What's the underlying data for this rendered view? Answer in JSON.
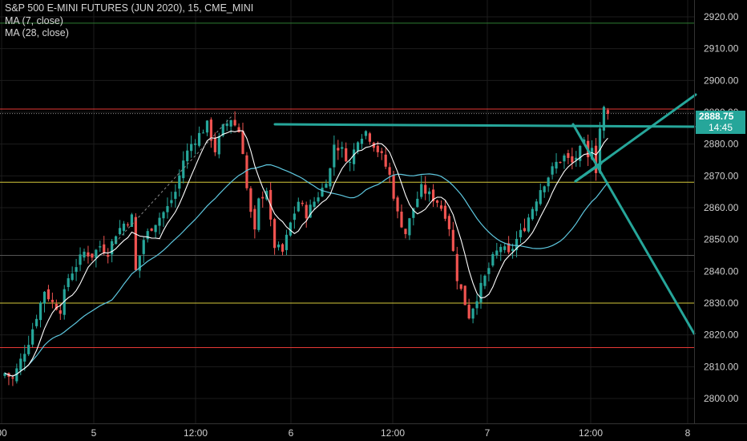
{
  "legend": {
    "title": "S&P 500 E-MINI FUTURES (JUN 2020), 15, CME_MINI",
    "ma_fast": "MA (7, close)",
    "ma_slow": "MA (28, close)"
  },
  "last_price_label": "2888.75",
  "countdown": "14:45",
  "colors": {
    "background": "#000000",
    "up": "#26a69a",
    "down": "#ef5350",
    "ma_fast": "#ffffff",
    "ma_slow": "#5ec8e0",
    "drawing": "#26a69a",
    "hline_red": "#e53935",
    "hline_yellow": "#d4c93a",
    "hline_green": "#2e7d32"
  },
  "chart_data": {
    "type": "candlestick",
    "title": "S&P 500 E-MINI FUTURES (JUN 2020), 15, CME_MINI",
    "ylim": [
      2794,
      2924
    ],
    "y_ticks": [
      2800,
      2810,
      2820,
      2830,
      2840,
      2850,
      2860,
      2870,
      2880,
      2890,
      2900,
      2910,
      2920
    ],
    "x_ticks": [
      "00",
      "5",
      "12:00",
      "6",
      "12:00",
      "7",
      "12:00",
      "8"
    ],
    "grid": true,
    "hlines": [
      {
        "price": 2918.0,
        "color": "green"
      },
      {
        "price": 2891.0,
        "color": "red"
      },
      {
        "price": 2868.0,
        "color": "yellow"
      },
      {
        "price": 2845.0,
        "color": "gray"
      },
      {
        "price": 2830.0,
        "color": "yellow"
      },
      {
        "price": 2816.0,
        "color": "red"
      }
    ],
    "close_path": [
      [
        0,
        2808
      ],
      [
        2,
        2806
      ],
      [
        4,
        2812
      ],
      [
        6,
        2818
      ],
      [
        8,
        2826
      ],
      [
        10,
        2834
      ],
      [
        12,
        2830
      ],
      [
        14,
        2828
      ],
      [
        16,
        2838
      ],
      [
        18,
        2842
      ],
      [
        20,
        2846
      ],
      [
        22,
        2845
      ],
      [
        24,
        2848
      ],
      [
        26,
        2846
      ],
      [
        28,
        2852
      ],
      [
        30,
        2855
      ],
      [
        32,
        2857
      ],
      [
        33,
        2840
      ],
      [
        35,
        2850
      ],
      [
        37,
        2854
      ],
      [
        39,
        2857
      ],
      [
        41,
        2860
      ],
      [
        43,
        2865
      ],
      [
        45,
        2875
      ],
      [
        47,
        2880
      ],
      [
        49,
        2883
      ],
      [
        51,
        2886
      ],
      [
        53,
        2878
      ],
      [
        55,
        2885
      ],
      [
        57,
        2888
      ],
      [
        59,
        2884
      ],
      [
        60,
        2878
      ],
      [
        61,
        2866
      ],
      [
        62,
        2858
      ],
      [
        63,
        2852
      ],
      [
        64,
        2862
      ],
      [
        66,
        2866
      ],
      [
        67,
        2855
      ],
      [
        68,
        2848
      ],
      [
        70,
        2846
      ],
      [
        72,
        2855
      ],
      [
        74,
        2862
      ],
      [
        76,
        2858
      ],
      [
        78,
        2862
      ],
      [
        80,
        2866
      ],
      [
        82,
        2872
      ],
      [
        83,
        2880
      ],
      [
        85,
        2878
      ],
      [
        87,
        2874
      ],
      [
        89,
        2882
      ],
      [
        91,
        2884
      ],
      [
        93,
        2880
      ],
      [
        95,
        2876
      ],
      [
        97,
        2870
      ],
      [
        99,
        2858
      ],
      [
        101,
        2852
      ],
      [
        103,
        2860
      ],
      [
        105,
        2866
      ],
      [
        107,
        2864
      ],
      [
        109,
        2862
      ],
      [
        111,
        2858
      ],
      [
        112,
        2854
      ],
      [
        114,
        2838
      ],
      [
        116,
        2830
      ],
      [
        117,
        2826
      ],
      [
        119,
        2832
      ],
      [
        121,
        2838
      ],
      [
        123,
        2844
      ],
      [
        125,
        2848
      ],
      [
        127,
        2845
      ],
      [
        129,
        2850
      ],
      [
        131,
        2854
      ],
      [
        133,
        2860
      ],
      [
        135,
        2866
      ],
      [
        137,
        2870
      ],
      [
        139,
        2874
      ],
      [
        141,
        2876
      ],
      [
        143,
        2874
      ],
      [
        145,
        2878
      ],
      [
        146,
        2880
      ],
      [
        147,
        2875
      ],
      [
        148,
        2880
      ],
      [
        149,
        2872
      ],
      [
        150,
        2885
      ],
      [
        151,
        2891
      ],
      [
        152,
        2889
      ]
    ],
    "series": [
      {
        "name": "MA (7, close)"
      },
      {
        "name": "MA (28, close)"
      }
    ]
  }
}
